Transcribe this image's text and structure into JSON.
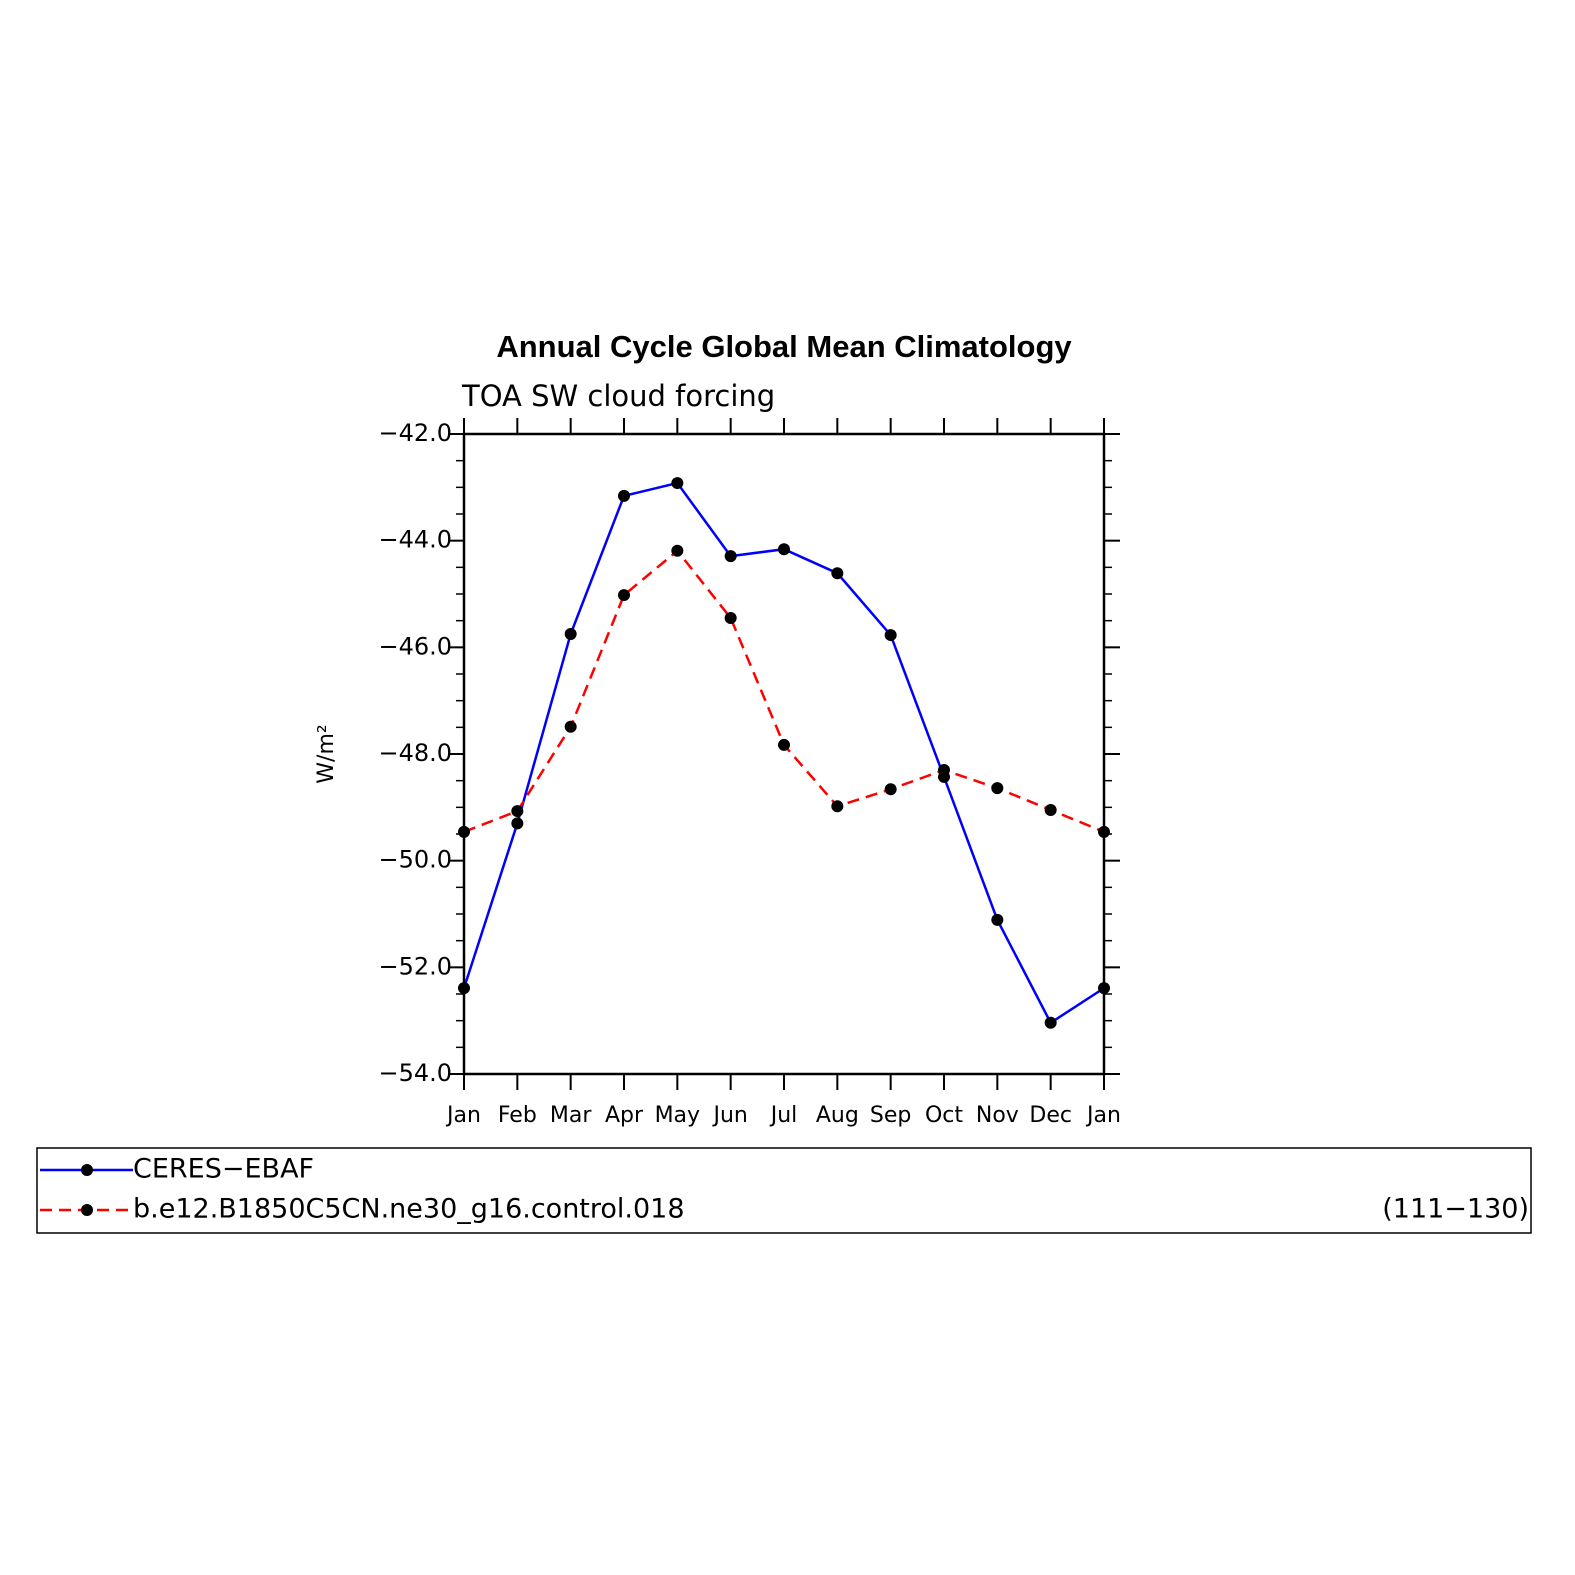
{
  "chart_data": {
    "type": "line",
    "title": "Annual Cycle Global Mean Climatology",
    "subtitle": "TOA SW cloud forcing",
    "y_label": "W/m²",
    "annotation": "(111−130)",
    "categories": [
      "Jan",
      "Feb",
      "Mar",
      "Apr",
      "May",
      "Jun",
      "Jul",
      "Aug",
      "Sep",
      "Oct",
      "Nov",
      "Dec",
      "Jan"
    ],
    "series": [
      {
        "name": "CERES−EBAF",
        "color": "#0000ff",
        "dash": false,
        "values": [
          -52.39,
          -49.3,
          -45.75,
          -43.16,
          -42.92,
          -44.29,
          -44.16,
          -44.61,
          -45.77,
          -48.43,
          -51.11,
          -53.04,
          -52.39
        ]
      },
      {
        "name": "b.e12.B1850C5CN.ne30_g16.control.018",
        "color": "#ff0000",
        "dash": true,
        "values": [
          -49.46,
          -49.07,
          -47.49,
          -45.02,
          -44.19,
          -45.45,
          -47.83,
          -48.98,
          -48.66,
          -48.3,
          -48.64,
          -49.05,
          -49.46
        ]
      }
    ],
    "ylim": [
      -54,
      -42
    ],
    "yticks": [
      {
        "value": -54,
        "label": "−54.0"
      },
      {
        "value": -52,
        "label": "−52.0"
      },
      {
        "value": -50,
        "label": "−50.0"
      },
      {
        "value": -48,
        "label": "−48.0"
      },
      {
        "value": -46,
        "label": "−46.0"
      },
      {
        "value": -44,
        "label": "−44.0"
      },
      {
        "value": -42,
        "label": "−42.0"
      }
    ],
    "marker_color": "#000000",
    "grid": false
  }
}
